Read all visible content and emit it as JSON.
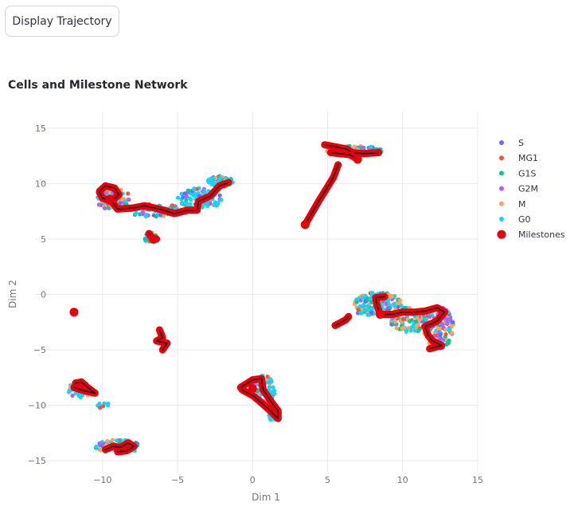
{
  "button": {
    "label": "Display Trajectory"
  },
  "chart_data": {
    "type": "scatter",
    "title": "Cells and Milestone Network",
    "xlabel": "Dim 1",
    "ylabel": "Dim 2",
    "xlim": [
      -14.5,
      15
    ],
    "ylim": [
      -16,
      16.5
    ],
    "xticks": [
      -10,
      -5,
      0,
      5,
      10,
      15
    ],
    "xtick_labels": [
      "−10",
      "−5",
      "0",
      "5",
      "10",
      "15"
    ],
    "yticks": [
      15,
      10,
      5,
      0,
      -5,
      -10,
      -15
    ],
    "ytick_labels": [
      "15",
      "10",
      "5",
      "0",
      "−5",
      "−10",
      "−15"
    ],
    "grid": true,
    "legend": {
      "position": "right",
      "entries": [
        "S",
        "MG1",
        "G1S",
        "G2M",
        "M",
        "G0",
        "Milestones"
      ]
    },
    "series": [
      {
        "name": "S",
        "color": "#636efa"
      },
      {
        "name": "MG1",
        "color": "#ef553b"
      },
      {
        "name": "G1S",
        "color": "#00cc96"
      },
      {
        "name": "G2M",
        "color": "#ab63fa"
      },
      {
        "name": "M",
        "color": "#ffa15a"
      },
      {
        "name": "G0",
        "color": "#19d3f3"
      }
    ],
    "cell_clusters": [
      {
        "cx": -9.3,
        "cy": 8.6,
        "rx": 1.2,
        "ry": 1.0,
        "n": 90,
        "weights": [
          1,
          1,
          2,
          3,
          4,
          3
        ]
      },
      {
        "cx": -6.5,
        "cy": 7.6,
        "rx": 2.0,
        "ry": 0.6,
        "n": 80,
        "weights": [
          1,
          1,
          2,
          1,
          1,
          5
        ]
      },
      {
        "cx": -3.5,
        "cy": 8.6,
        "rx": 1.5,
        "ry": 1.0,
        "n": 100,
        "weights": [
          1,
          1,
          1,
          1,
          1,
          8
        ]
      },
      {
        "cx": -2.2,
        "cy": 10.2,
        "rx": 0.9,
        "ry": 0.5,
        "n": 60,
        "weights": [
          1,
          1,
          1,
          1,
          1,
          8
        ]
      },
      {
        "cx": -6.8,
        "cy": 5.1,
        "rx": 0.4,
        "ry": 0.5,
        "n": 25,
        "weights": [
          1,
          1,
          3,
          1,
          1,
          5
        ]
      },
      {
        "cx": 6.8,
        "cy": 13.0,
        "rx": 2.0,
        "ry": 0.4,
        "n": 80,
        "weights": [
          1,
          1,
          5,
          2,
          2,
          3
        ]
      },
      {
        "cx": 8.4,
        "cy": -0.8,
        "rx": 1.6,
        "ry": 1.0,
        "n": 130,
        "weights": [
          1,
          1,
          1,
          1,
          3,
          8
        ]
      },
      {
        "cx": 10.5,
        "cy": -2.2,
        "rx": 1.4,
        "ry": 1.2,
        "n": 110,
        "weights": [
          1,
          1,
          3,
          1,
          3,
          5
        ]
      },
      {
        "cx": 12.4,
        "cy": -3.0,
        "rx": 1.0,
        "ry": 1.9,
        "n": 150,
        "weights": [
          3,
          2,
          3,
          4,
          5,
          2
        ]
      },
      {
        "cx": 7.5,
        "cy": -1.5,
        "rx": 0.6,
        "ry": 0.4,
        "n": 20,
        "weights": [
          1,
          1,
          1,
          1,
          1,
          8
        ]
      },
      {
        "cx": 0.7,
        "cy": -8.6,
        "rx": 0.8,
        "ry": 1.3,
        "n": 80,
        "weights": [
          1,
          1,
          1,
          1,
          1,
          8
        ]
      },
      {
        "cx": 1.4,
        "cy": -10.8,
        "rx": 0.4,
        "ry": 0.6,
        "n": 30,
        "weights": [
          1,
          1,
          1,
          1,
          1,
          8
        ]
      },
      {
        "cx": -11.5,
        "cy": -8.6,
        "rx": 0.8,
        "ry": 0.7,
        "n": 45,
        "weights": [
          1,
          1,
          1,
          1,
          1,
          8
        ]
      },
      {
        "cx": -10.0,
        "cy": -9.9,
        "rx": 0.4,
        "ry": 0.4,
        "n": 10,
        "weights": [
          1,
          1,
          1,
          1,
          1,
          8
        ]
      },
      {
        "cx": -9.0,
        "cy": -13.7,
        "rx": 1.5,
        "ry": 0.6,
        "n": 80,
        "weights": [
          1,
          1,
          1,
          1,
          4,
          6
        ]
      }
    ],
    "trajectories": [
      [
        [
          -10.2,
          9.3
        ],
        [
          -9.8,
          9.8
        ],
        [
          -9.2,
          9.6
        ],
        [
          -8.9,
          9.0
        ],
        [
          -9.4,
          8.4
        ],
        [
          -10.0,
          8.7
        ],
        [
          -10.2,
          9.2
        ]
      ],
      [
        [
          -9.5,
          8.6
        ],
        [
          -9.0,
          7.7
        ],
        [
          -8.0,
          7.8
        ],
        [
          -7.2,
          8.0
        ],
        [
          -6.2,
          7.7
        ],
        [
          -5.2,
          7.3
        ],
        [
          -4.3,
          7.6
        ],
        [
          -3.7,
          7.6
        ],
        [
          -3.6,
          8.4
        ],
        [
          -2.8,
          8.9
        ],
        [
          -2.2,
          9.8
        ],
        [
          -1.6,
          10.1
        ]
      ],
      [
        [
          -6.9,
          5.5
        ],
        [
          -6.6,
          4.9
        ],
        [
          -6.4,
          5.0
        ]
      ],
      [
        [
          -6.2,
          -3.2
        ],
        [
          -6.0,
          -3.9
        ],
        [
          -6.4,
          -4.2
        ],
        [
          -5.7,
          -4.4
        ],
        [
          -6.0,
          -5.0
        ]
      ],
      [
        [
          -11.8,
          -8.0
        ],
        [
          -11.4,
          -7.9
        ],
        [
          -11.0,
          -8.4
        ],
        [
          -10.5,
          -8.9
        ],
        [
          -11.2,
          -8.7
        ],
        [
          -11.9,
          -8.4
        ]
      ],
      [
        [
          -9.8,
          -14.0
        ],
        [
          -9.3,
          -13.7
        ],
        [
          -8.8,
          -13.8
        ],
        [
          -8.3,
          -13.4
        ],
        [
          -7.9,
          -13.7
        ],
        [
          -8.4,
          -14.1
        ],
        [
          -9.0,
          -14.2
        ]
      ],
      [
        [
          -0.8,
          -8.4
        ],
        [
          0.0,
          -7.7
        ],
        [
          0.6,
          -7.6
        ],
        [
          0.7,
          -8.6
        ],
        [
          1.3,
          -9.8
        ],
        [
          1.7,
          -10.5
        ],
        [
          1.7,
          -11.2
        ],
        [
          1.1,
          -10.4
        ],
        [
          0.1,
          -9.2
        ],
        [
          -0.7,
          -8.6
        ]
      ],
      [
        [
          4.8,
          13.5
        ],
        [
          5.6,
          13.3
        ],
        [
          6.3,
          13.1
        ],
        [
          6.6,
          12.8
        ],
        [
          7.4,
          12.7
        ],
        [
          8.4,
          12.8
        ]
      ],
      [
        [
          5.2,
          12.8
        ],
        [
          6.5,
          12.6
        ],
        [
          7.0,
          12.2
        ]
      ],
      [
        [
          3.5,
          6.3
        ],
        [
          4.4,
          8.4
        ],
        [
          5.4,
          10.6
        ],
        [
          5.7,
          11.7
        ]
      ],
      [
        [
          5.5,
          -2.8
        ],
        [
          5.8,
          -2.6
        ],
        [
          6.2,
          -2.3
        ],
        [
          6.4,
          -2.0
        ]
      ],
      [
        [
          8.5,
          -1.8
        ],
        [
          9.3,
          -1.8
        ],
        [
          10.0,
          -1.6
        ],
        [
          10.8,
          -1.6
        ],
        [
          11.5,
          -1.5
        ],
        [
          12.3,
          -1.2
        ],
        [
          12.8,
          -1.6
        ],
        [
          12.3,
          -2.4
        ],
        [
          11.5,
          -2.9
        ],
        [
          11.7,
          -3.7
        ],
        [
          12.0,
          -4.2
        ],
        [
          12.6,
          -4.6
        ],
        [
          11.8,
          -4.9
        ]
      ],
      [
        [
          8.5,
          -1.8
        ],
        [
          8.3,
          -1.0
        ],
        [
          8.2,
          -0.3
        ],
        [
          8.8,
          -0.2
        ]
      ]
    ],
    "milestones": [
      [
        -11.9,
        -1.6
      ],
      [
        -6.6,
        5.0
      ],
      [
        7.0,
        12.2
      ],
      [
        3.5,
        6.3
      ],
      [
        8.5,
        -1.8
      ],
      [
        -9.5,
        8.6
      ],
      [
        0.0,
        -8.5
      ]
    ]
  }
}
